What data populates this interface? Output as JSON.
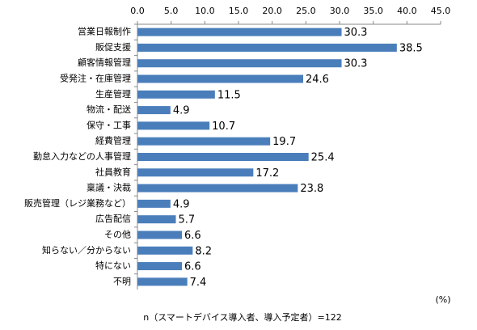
{
  "chart_data": {
    "type": "bar",
    "orientation": "horizontal",
    "categories": [
      "営業日報制作",
      "販促支援",
      "顧客情報管理",
      "受発注・在庫管理",
      "生産管理",
      "物流・配送",
      "保守・工事",
      "経費管理",
      "勤怠入力などの人事管理",
      "社員教育",
      "稟議・決裁",
      "販売管理（レジ業務など）",
      "広告配信",
      "その他",
      "知らない／分からない",
      "特にない",
      "不明"
    ],
    "values": [
      30.3,
      38.5,
      30.3,
      24.6,
      11.5,
      4.9,
      10.7,
      19.7,
      25.4,
      17.2,
      23.8,
      4.9,
      5.7,
      6.6,
      8.2,
      6.6,
      7.4
    ],
    "color": "#4a7ebb",
    "xlim": [
      0,
      45
    ],
    "xticks": [
      {
        "value": 0,
        "label": "0.0"
      },
      {
        "value": 5,
        "label": "5.0"
      },
      {
        "value": 10,
        "label": "10.0"
      },
      {
        "value": 15,
        "label": "15.0"
      },
      {
        "value": 20,
        "label": "20.0"
      },
      {
        "value": 25,
        "label": "25.0"
      },
      {
        "value": 30,
        "label": "30.0"
      },
      {
        "value": 35,
        "label": "35.0"
      },
      {
        "value": 40,
        "label": "40.0"
      },
      {
        "value": 45,
        "label": "45.0"
      }
    ],
    "unit_label": "(%)",
    "note": "n（スマートデバイス導入者、導入予定者）=122"
  }
}
